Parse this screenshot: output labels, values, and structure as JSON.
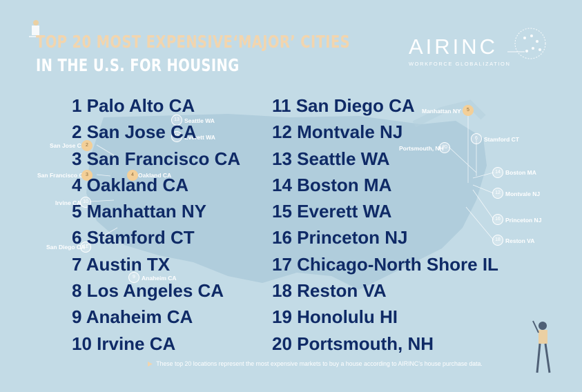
{
  "header": {
    "title_line1": "TOP 20 MOST EXPENSIVE‘MAJOR’ CITIES",
    "title_line2": "IN THE U.S. FOR HOUSING"
  },
  "logo": {
    "name": "AIRINC",
    "tagline": "WORKFORCE GLOBALIZATION"
  },
  "rankings_left": [
    "1 Palo Alto CA",
    "2 San Jose CA",
    "3 San Francisco CA",
    "4 Oakland CA",
    "5 Manhattan NY",
    "6 Stamford CT",
    "7 Austin TX",
    "8 Los Angeles CA",
    "9 Anaheim CA",
    "10 Irvine CA"
  ],
  "rankings_right": [
    "11 San Diego CA",
    "12 Montvale NJ",
    "13 Seattle WA",
    "14 Boston MA",
    "15 Everett WA",
    "16 Princeton NJ",
    "17 Chicago-North Shore IL",
    "18 Reston VA",
    "19 Honolulu HI",
    "20 Portsmouth, NH"
  ],
  "map_labels": {
    "seattle": "Seattle WA",
    "everett": "Everett WA",
    "san_jose": "San Jose CA",
    "san_francisco": "San Francisco CA",
    "oakland": "Oakland CA",
    "irvine": "Irvine CA",
    "san_diego": "San Diego CA",
    "anaheim": "Anaheim CA",
    "manhattan": "Manhattan NY",
    "stamford": "Stamford CT",
    "portsmouth": "Portsmouth, NH",
    "boston": "Boston MA",
    "montvale": "Montvale NJ",
    "princeton": "Princeton NJ",
    "reston": "Reston VA"
  },
  "map_pins": {
    "seattle": "13",
    "everett": "15",
    "san_jose": "2",
    "san_francisco": "3",
    "oakland": "4",
    "irvine": "10",
    "san_diego": "11",
    "anaheim": "9",
    "manhattan": "5",
    "stamford": "6",
    "portsmouth": "20",
    "boston": "14",
    "montvale": "12",
    "princeton": "16",
    "reston": "18"
  },
  "footnote": "These top 20 locations represent the most expensive markets to buy a house according to AIRINC’s house purchase data.",
  "colors": {
    "background": "#c3dbe6",
    "list_text": "#0f2a66",
    "title_accent": "#f2d5ae",
    "pin_gold": "#f3cf98"
  }
}
